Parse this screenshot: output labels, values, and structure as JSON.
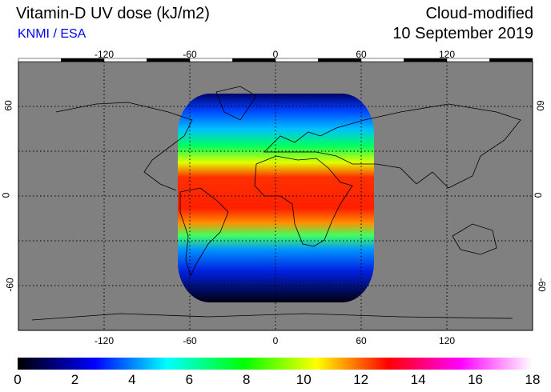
{
  "header": {
    "title": "Vitamin-D UV dose (kJ/m2)",
    "credit": "KNMI / ESA",
    "mode": "Cloud-modified",
    "date": "10 September 2019"
  },
  "map": {
    "lon_ticks": [
      "-120",
      "-60",
      "0",
      "60",
      "120"
    ],
    "lon_values": [
      -120,
      -60,
      0,
      60,
      120
    ],
    "lat_ticks": [
      "60",
      "0",
      "-60"
    ],
    "lat_values": [
      60,
      0,
      -60
    ],
    "background_color": "#808080"
  },
  "colorbar": {
    "labels": [
      "0",
      "2",
      "4",
      "6",
      "8",
      "10",
      "12",
      "14",
      "16",
      "18"
    ],
    "range": [
      0,
      18
    ],
    "colors": [
      "#000000",
      "#0000ff",
      "#00ffff",
      "#00ff00",
      "#ffff00",
      "#ff0000",
      "#ff00ff",
      "#ffffff"
    ]
  }
}
